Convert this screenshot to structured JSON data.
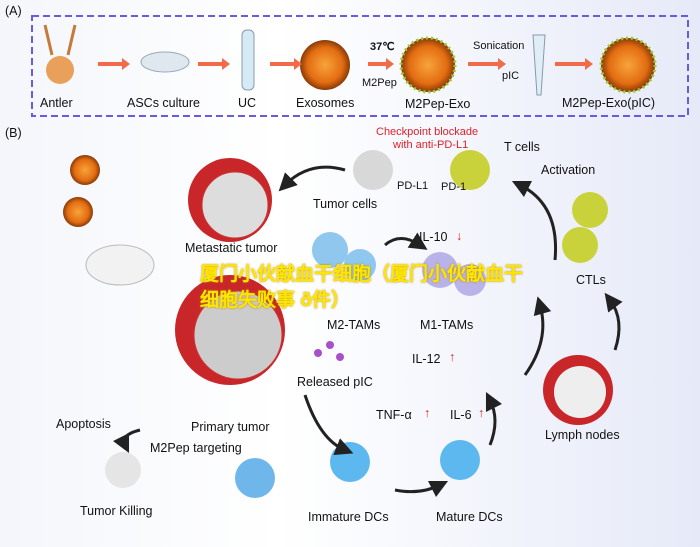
{
  "panel_a": {
    "label": "(A)",
    "steps": [
      "Antler",
      "ASCs culture",
      "UC",
      "Exosomes",
      "M2Pep-Exo",
      "M2Pep-Exo(pIC)"
    ],
    "temp": "37℃",
    "peptide": "M2Pep",
    "sonication": "Sonication",
    "pic": "pIC"
  },
  "panel_b": {
    "label": "(B)",
    "checkpoint": "Checkpoint blockade",
    "checkpoint2": "with anti-PD-L1",
    "t_cells": "T cells",
    "pdl1": "PD-L1",
    "pd1": "PD-1",
    "activation": "Activation",
    "tumor_cells": "Tumor cells",
    "metastatic": "Metastatic tumor",
    "il10": "IL-10",
    "m2tam": "M2-TAMs",
    "m1tam": "M1-TAMs",
    "ctls": "CTLs",
    "released_pic": "Released pIC",
    "il12": "IL-12",
    "tnf": "TNF-α",
    "il6": "IL-6",
    "primary": "Primary tumor",
    "apoptosis": "Apoptosis",
    "targeting": "M2Pep targeting",
    "lymph": "Lymph nodes",
    "killing": "Tumor Killing",
    "immature": "Immature DCs",
    "mature": "Mature DCs"
  },
  "watermark": "厦门小伙献血干细胞（厦门小伙献血干细胞失败事 ð件）",
  "colors": {
    "border": "#6a5ae0",
    "arrow": "#f26a4a",
    "up_down": "#e0202a"
  }
}
